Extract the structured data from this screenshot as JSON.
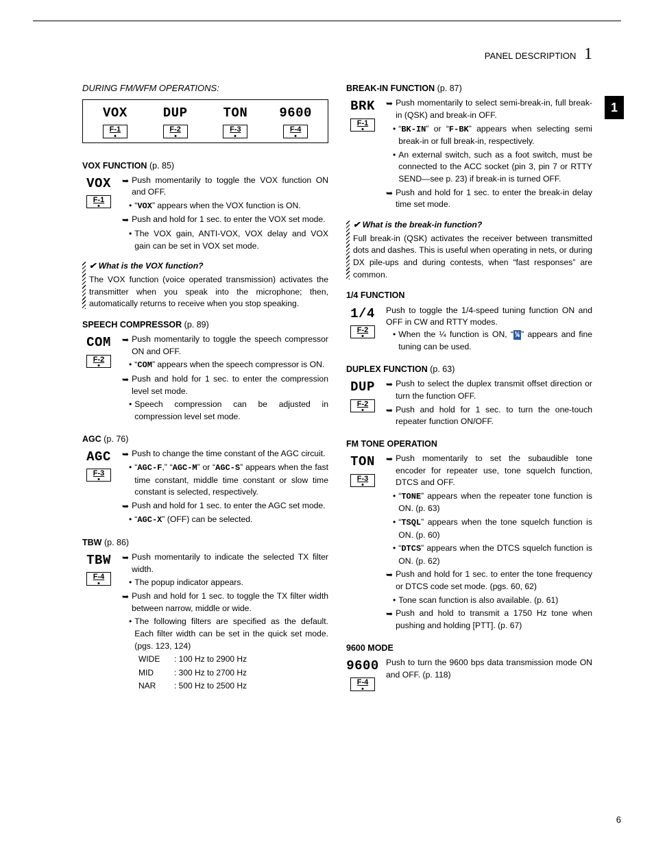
{
  "header": {
    "title": "PANEL DESCRIPTION",
    "chapter": "1"
  },
  "page_tab": "1",
  "page_number": "6",
  "left": {
    "subtitle": "DURING FM/WFM OPERATIONS:",
    "fn_bar": [
      {
        "lcd": "VOX",
        "key": "F-1"
      },
      {
        "lcd": "DUP",
        "key": "F-2"
      },
      {
        "lcd": "TON",
        "key": "F-3"
      },
      {
        "lcd": "9600",
        "key": "F-4"
      }
    ],
    "vox": {
      "title": "VOX FUNCTION",
      "pg": "(p. 85)",
      "lcd": "VOX",
      "key": "F-1",
      "a1": "Push momentarily to toggle the VOX function ON and OFF.",
      "d1a": "“",
      "d1_lcd": "VOX",
      "d1b": "” appears when the VOX function is ON.",
      "a2": "Push and hold for 1 sec. to enter the VOX set mode.",
      "d2": "The VOX gain, ANTI-VOX, VOX delay and VOX gain can be set in VOX set mode.",
      "info_h": "What is the VOX function?",
      "info_b": "The VOX function (voice operated transmission) activates the transmitter when you speak into the microphone; then, automatically returns to receive when you stop speaking."
    },
    "com": {
      "title": "SPEECH COMPRESSOR",
      "pg": "(p. 89)",
      "lcd": "COM",
      "key": "F-2",
      "a1": "Push momentarily to toggle the speech compressor ON and OFF.",
      "d1a": "“",
      "d1_lcd": "COM",
      "d1b": "” appears when the speech compressor is ON.",
      "a2": "Push and hold for 1 sec. to enter the compression level set mode.",
      "d2": "Speech compression can be adjusted in compression level set mode."
    },
    "agc": {
      "title": "AGC",
      "pg": "(p. 76)",
      "lcd": "AGC",
      "key": "F-3",
      "a1": "Push to change the time constant of the AGC circuit.",
      "d1a": "“",
      "d1_l1": "AGC-F",
      "d1b": ",” “",
      "d1_l2": "AGC-M",
      "d1c": "” or “",
      "d1_l3": "AGC-S",
      "d1d": "” appears when the fast time constant, middle time constant or slow time constant is selected, respectively.",
      "a2": "Push and hold for 1 sec. to enter the AGC set mode.",
      "d2a": "“",
      "d2_lcd": "AGC-X",
      "d2b": "” (OFF) can be selected."
    },
    "tbw": {
      "title": "TBW",
      "pg": "(p. 86)",
      "lcd": "TBW",
      "key": "F-4",
      "a1": "Push momentarily to indicate the selected TX filter width.",
      "d1": "The popup indicator appears.",
      "a2": "Push and hold for 1 sec. to toggle the TX filter width between narrow, middle or wide.",
      "d2": "The following filters are specified as the default. Each filter width can be set in the quick set mode. (pgs. 123, 124)",
      "rows": [
        {
          "l": "WIDE",
          "v": ": 100 Hz to 2900 Hz"
        },
        {
          "l": "MID",
          "v": ": 300 Hz to 2700 Hz"
        },
        {
          "l": "NAR",
          "v": ": 500 Hz to 2500 Hz"
        }
      ]
    }
  },
  "right": {
    "brk": {
      "title": "BREAK-IN FUNCTION",
      "pg": "(p. 87)",
      "lcd": "BRK",
      "key": "F-1",
      "a1": "Push momentarily to select semi-break-in, full break-in (QSK) and break-in OFF.",
      "d1a": "“",
      "d1_l1": "BK-IN",
      "d1b": "” or “",
      "d1_l2": "F-BK",
      "d1c": "” appears when selecting semi break-in or full break-in, respectively.",
      "d2": "An external switch, such as a foot switch, must be connected to the ACC socket (pin 3, pin 7 or RTTY SEND—see p. 23) if break-in is turned OFF.",
      "a2": "Push and hold for 1 sec. to enter the break-in delay time set mode.",
      "info_h": "What is the break-in function?",
      "info_b": "Full break-in (QSK) activates the receiver between transmitted dots and dashes. This is useful when operating in nets, or during DX pile-ups and during contests, when “fast responses” are common."
    },
    "qtr": {
      "title": "1/4 FUNCTION",
      "lcd": "1/4",
      "key": "F-2",
      "a1": "Push to toggle the 1/4-speed tuning function ON and OFF in CW and RTTY modes.",
      "d1a": "When the ¼ function is ON, “",
      "d1_lcd": "¼",
      "d1b": "” appears and fine tuning can be used."
    },
    "dup": {
      "title": "DUPLEX FUNCTION",
      "pg": "(p. 63)",
      "lcd": "DUP",
      "key": "F-2",
      "a1": "Push to select the duplex transmit offset direction or turn the function OFF.",
      "a2": "Push and hold for 1 sec. to turn the one-touch repeater function ON/OFF."
    },
    "ton": {
      "title": "FM TONE OPERATION",
      "lcd": "TON",
      "key": "F-3",
      "a1": "Push momentarily to set the subaudible tone encoder for repeater use, tone squelch function, DTCS and OFF.",
      "d1a": "“",
      "d1_l1": "TONE",
      "d1b": "” appears when the repeater tone function is ON. (p. 63)",
      "d2a": "“",
      "d2_l1": "TSQL",
      "d2b": "” appears when the tone squelch function is ON. (p. 60)",
      "d3a": "“",
      "d3_l1": "DTCS",
      "d3b": "” appears when the DTCS squelch function is ON. (p. 62)",
      "a2": "Push and hold for 1 sec. to enter the tone frequency or DTCS code set mode. (pgs. 60, 62)",
      "d4": "Tone scan function is also available. (p. 61)",
      "a3": "Push and hold to transmit a 1750 Hz tone when pushing and holding [PTT]. (p. 67)"
    },
    "m9600": {
      "title": "9600 MODE",
      "lcd": "9600",
      "key": "F-4",
      "a1": "Push to turn the 9600 bps data transmission mode  ON and OFF. (p. 118)"
    }
  }
}
